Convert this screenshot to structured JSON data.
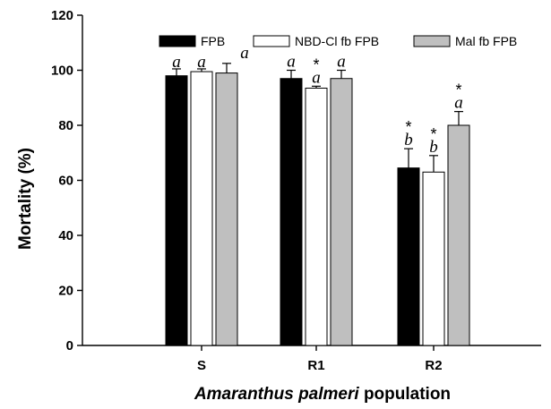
{
  "chart_data": {
    "type": "bar",
    "categories": [
      "S",
      "R1",
      "R2"
    ],
    "series": [
      {
        "name": "FPB",
        "color": "#000000",
        "values": [
          98,
          97,
          64.5
        ],
        "errors": [
          2.5,
          3,
          7
        ],
        "letters": [
          "a",
          "a",
          "b"
        ],
        "stars": [
          "",
          "",
          "*"
        ]
      },
      {
        "name": "NBD-Cl fb FPB",
        "color": "#ffffff",
        "values": [
          99.5,
          93.5,
          63
        ],
        "errors": [
          1,
          0.7,
          6
        ],
        "letters": [
          "a",
          "a",
          "b"
        ],
        "stars": [
          "",
          "*",
          "*"
        ]
      },
      {
        "name": "Mal fb FPB",
        "color": "#bfbfbf",
        "values": [
          99,
          97,
          80
        ],
        "errors": [
          3.5,
          3,
          5
        ],
        "letters": [
          "a",
          "a",
          "a"
        ],
        "stars": [
          "",
          "",
          "*"
        ]
      }
    ],
    "ylabel": "Mortality (%)",
    "xlabel_italic": "Amaranthus palmeri",
    "xlabel_rest": " population",
    "ylim": [
      0,
      120
    ],
    "yticks": [
      0,
      20,
      40,
      60,
      80,
      100,
      120
    ],
    "grid": false,
    "legend_position": "top"
  }
}
